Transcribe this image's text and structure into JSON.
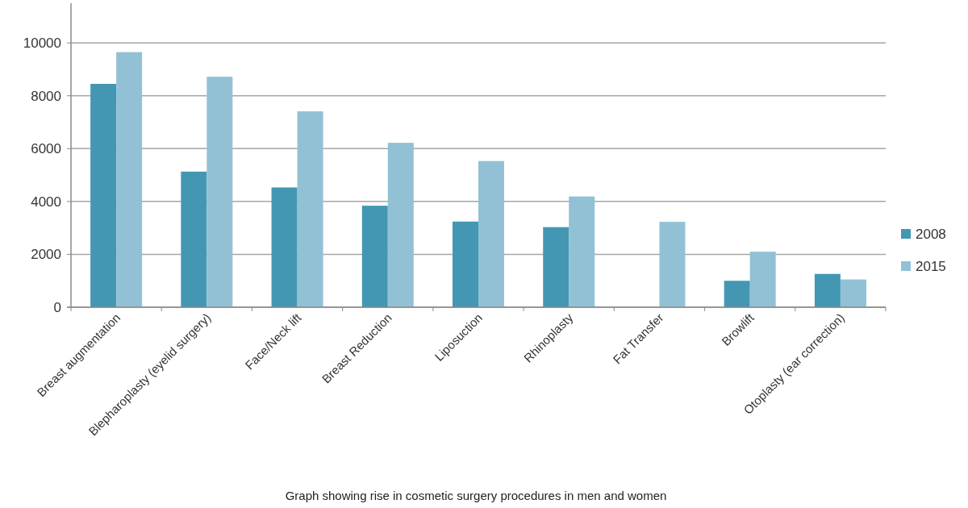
{
  "chart_data": {
    "type": "bar",
    "categories": [
      "Breast augmentation",
      "Blepharoplasty (eyelid surgery)",
      "Face/Neck lift",
      "Breast Reduction",
      "Liposuction",
      "Rhinoplasty",
      "Fat Transfer",
      "Browlift",
      "Otoplasty (ear correction)"
    ],
    "series": [
      {
        "name": "2008",
        "color": "#4397b3",
        "values": [
          8450,
          5130,
          4530,
          3840,
          3240,
          3030,
          null,
          1000,
          1260
        ]
      },
      {
        "name": "2015",
        "color": "#92c1d5",
        "values": [
          9650,
          8720,
          7410,
          6220,
          5530,
          4190,
          3230,
          2100,
          1050
        ]
      }
    ],
    "ylim": [
      0,
      11500
    ],
    "yticks": [
      0,
      2000,
      4000,
      6000,
      8000,
      10000
    ],
    "grid": "y",
    "legend": "right",
    "annotations": [
      "Graph showing rise in cosmetic surgery procedures in men and women"
    ]
  }
}
